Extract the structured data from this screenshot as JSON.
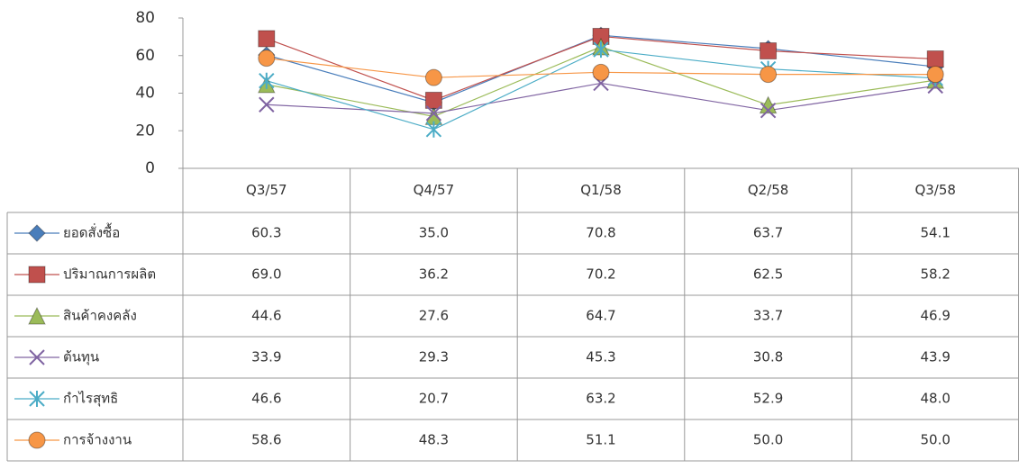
{
  "chart_data": {
    "type": "line",
    "categories": [
      "Q3/57",
      "Q4/57",
      "Q1/58",
      "Q2/58",
      "Q3/58"
    ],
    "ylim": [
      0,
      80
    ],
    "yticks": [
      0,
      20,
      40,
      60,
      80
    ],
    "series": [
      {
        "name": "ยอดสั่งซื้อ",
        "color": "#4a7ebb",
        "marker": "diamond",
        "values": [
          60.3,
          35.0,
          70.8,
          63.7,
          54.1
        ],
        "value_labels": [
          "60.3",
          "35.0",
          "70.8",
          "63.7",
          "54.1"
        ]
      },
      {
        "name": "ปริมาณการผลิต",
        "color": "#c0504d",
        "marker": "square",
        "values": [
          69.0,
          36.2,
          70.2,
          62.5,
          58.2
        ],
        "value_labels": [
          "69.0",
          "36.2",
          "70.2",
          "62.5",
          "58.2"
        ]
      },
      {
        "name": "สินค้าคงคลัง",
        "color": "#9bbb59",
        "marker": "triangle",
        "values": [
          44.6,
          27.6,
          64.7,
          33.7,
          46.9
        ],
        "value_labels": [
          "44.6",
          "27.6",
          "64.7",
          "33.7",
          "46.9"
        ]
      },
      {
        "name": "ต้นทุน",
        "color": "#8064a2",
        "marker": "x",
        "values": [
          33.9,
          29.3,
          45.3,
          30.8,
          43.9
        ],
        "value_labels": [
          "33.9",
          "29.3",
          "45.3",
          "30.8",
          "43.9"
        ]
      },
      {
        "name": "กำไรสุทธิ",
        "color": "#4bacc6",
        "marker": "star",
        "values": [
          46.6,
          20.7,
          63.2,
          52.9,
          48.0
        ],
        "value_labels": [
          "46.6",
          "20.7",
          "63.2",
          "52.9",
          "48.0"
        ]
      },
      {
        "name": "การจ้างงาน",
        "color": "#f79646",
        "marker": "circle",
        "values": [
          58.6,
          48.3,
          51.1,
          50.0,
          50.0
        ],
        "value_labels": [
          "58.6",
          "48.3",
          "51.1",
          "50.0",
          "50.0"
        ]
      }
    ]
  }
}
